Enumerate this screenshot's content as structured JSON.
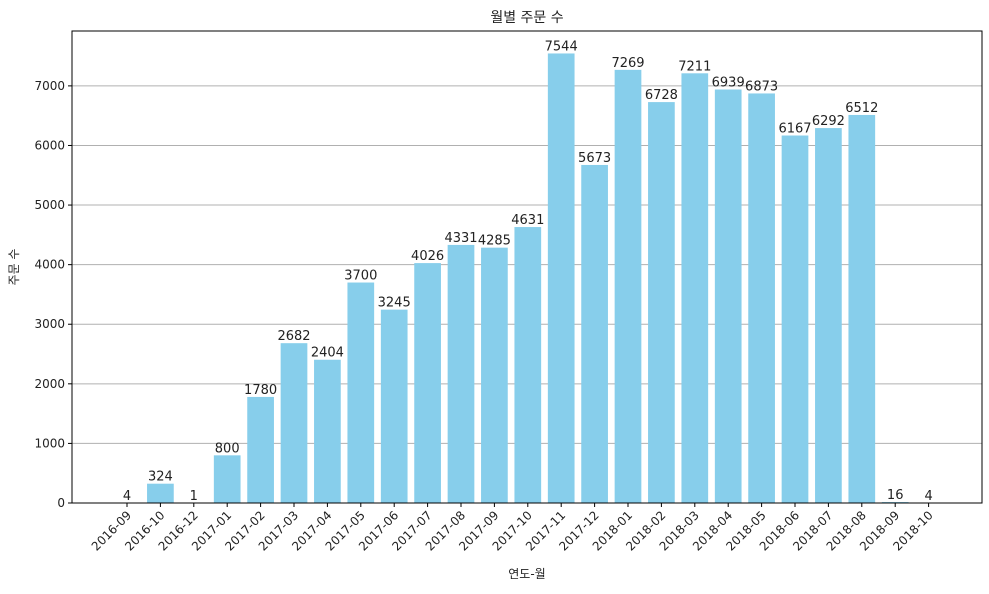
{
  "chart_data": {
    "type": "bar",
    "title": "월별 주문 수",
    "xlabel": "연도-월",
    "ylabel": "주문 수",
    "categories": [
      "2016-09",
      "2016-10",
      "2016-12",
      "2017-01",
      "2017-02",
      "2017-03",
      "2017-04",
      "2017-05",
      "2017-06",
      "2017-07",
      "2017-08",
      "2017-09",
      "2017-10",
      "2017-11",
      "2017-12",
      "2018-01",
      "2018-02",
      "2018-03",
      "2018-04",
      "2018-05",
      "2018-06",
      "2018-07",
      "2018-08",
      "2018-09",
      "2018-10"
    ],
    "values": [
      4,
      324,
      1,
      800,
      1780,
      2682,
      2404,
      3700,
      3245,
      4026,
      4331,
      4285,
      4631,
      7544,
      5673,
      7269,
      6728,
      7211,
      6939,
      6873,
      6167,
      6292,
      6512,
      16,
      4
    ],
    "ylim": [
      0,
      7921
    ],
    "yticks": [
      0,
      1000,
      2000,
      3000,
      4000,
      5000,
      6000,
      7000
    ],
    "bar_color": "#87ceeb",
    "grid": "y-axis major gridlines",
    "data_labels": true
  }
}
